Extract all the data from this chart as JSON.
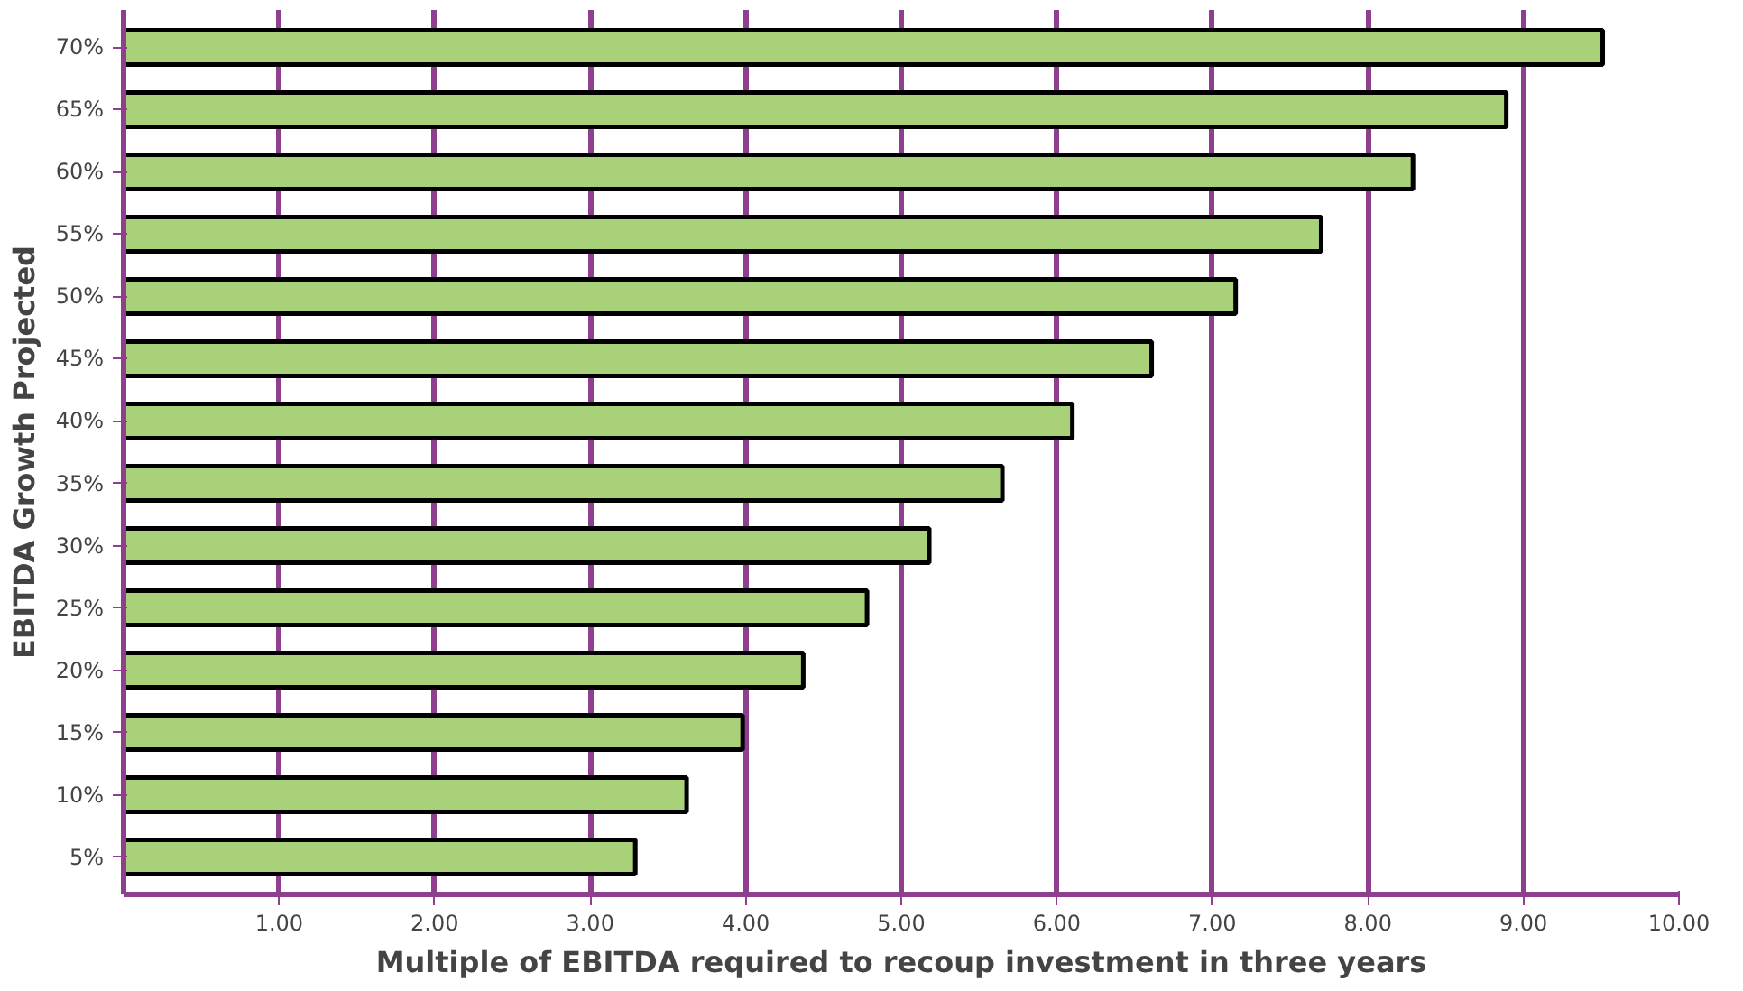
{
  "chart_data": {
    "type": "bar",
    "orientation": "horizontal",
    "xlabel": "Multiple of EBITDA required to recoup investment in three years",
    "ylabel": "EBITDA Growth Projected",
    "categories": [
      "70%",
      "65%",
      "60%",
      "55%",
      "50%",
      "45%",
      "40%",
      "35%",
      "30%",
      "25%",
      "20%",
      "15%",
      "10%",
      "5%"
    ],
    "values": [
      9.51,
      8.89,
      8.29,
      7.7,
      7.15,
      6.61,
      6.1,
      5.65,
      5.18,
      4.78,
      4.37,
      3.98,
      3.62,
      3.29
    ],
    "color": "#a9d17a",
    "xlim": [
      0,
      10
    ],
    "xticks": [
      {
        "value": 1,
        "label": "1.00"
      },
      {
        "value": 2,
        "label": "2.00"
      },
      {
        "value": 3,
        "label": "3.00"
      },
      {
        "value": 4,
        "label": "4.00"
      },
      {
        "value": 5,
        "label": "5.00"
      },
      {
        "value": 6,
        "label": "6.00"
      },
      {
        "value": 7,
        "label": "7.00"
      },
      {
        "value": 8,
        "label": "8.00"
      },
      {
        "value": 9,
        "label": "9.00"
      },
      {
        "value": 10,
        "label": "10.00"
      }
    ],
    "grid": "x"
  }
}
